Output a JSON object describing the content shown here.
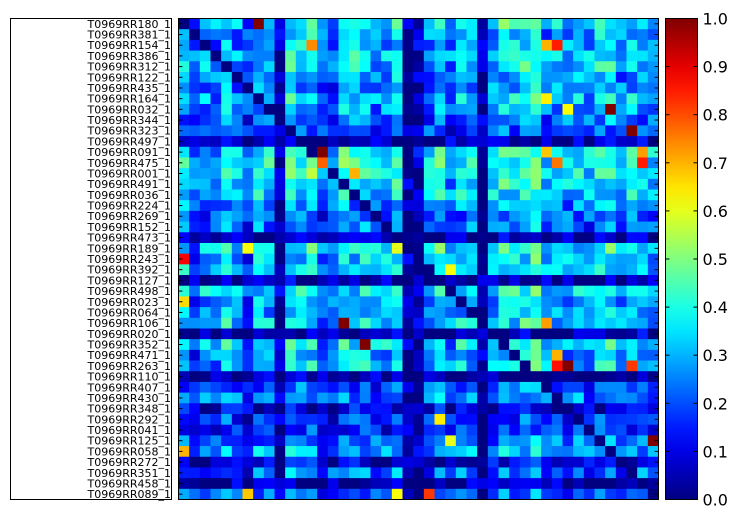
{
  "chart_data": {
    "type": "heatmap",
    "title": "",
    "xlabel": "",
    "ylabel": "",
    "colormap": "jet",
    "vmin": 0.0,
    "vmax": 1.0,
    "rows": [
      "T0969RR180_1",
      "T0969RR381_1",
      "T0969RR154_1",
      "T0969RR386_1",
      "T0969RR312_1",
      "T0969RR122_1",
      "T0969RR435_1",
      "T0969RR164_1",
      "T0969RR032_1",
      "T0969RR344_1",
      "T0969RR323_1",
      "T0969RR497_1",
      "T0969RR091_1",
      "T0969RR475_1",
      "T0969RR001_1",
      "T0969RR491_1",
      "T0969RR036_1",
      "T0969RR224_1",
      "T0969RR269_1",
      "T0969RR152_1",
      "T0969RR473_1",
      "T0969RR189_1",
      "T0969RR243_1",
      "T0969RR392_1",
      "T0969RR127_1",
      "T0969RR498_1",
      "T0969RR023_1",
      "T0969RR064_1",
      "T0969RR106_1",
      "T0969RR020_1",
      "T0969RR352_1",
      "T0969RR471_1",
      "T0969RR263_1",
      "T0969RR110_1",
      "T0969RR407_1",
      "T0969RR430_1",
      "T0969RR348_1",
      "T0969RR292_1",
      "T0969RR041_1",
      "T0969RR125_1",
      "T0969RR058_1",
      "T0969RR272_1",
      "T0969RR351_1",
      "T0969RR458_1",
      "T0969RR089_1"
    ],
    "colorbar": {
      "ticks": [
        "0.0",
        "0.1",
        "0.2",
        "0.3",
        "0.4",
        "0.5",
        "0.6",
        "0.7",
        "0.8",
        "0.9",
        "1.0"
      ],
      "tick_values": [
        0.0,
        0.1,
        0.2,
        0.3,
        0.4,
        0.5,
        0.6,
        0.7,
        0.8,
        0.9,
        1.0
      ]
    },
    "row_base": [
      0.4,
      0.32,
      0.32,
      0.38,
      0.36,
      0.3,
      0.28,
      0.36,
      0.3,
      0.26,
      0.22,
      0.05,
      0.4,
      0.42,
      0.42,
      0.38,
      0.36,
      0.28,
      0.24,
      0.26,
      0.05,
      0.4,
      0.34,
      0.36,
      0.05,
      0.38,
      0.32,
      0.3,
      0.36,
      0.05,
      0.38,
      0.32,
      0.36,
      0.04,
      0.22,
      0.28,
      0.1,
      0.2,
      0.16,
      0.26,
      0.3,
      0.1,
      0.26,
      0.04,
      0.24
    ],
    "col_base": [
      0.36,
      0.22,
      0.32,
      0.28,
      0.38,
      0.3,
      0.2,
      0.36,
      0.34,
      0.04,
      0.4,
      0.38,
      0.42,
      0.26,
      0.26,
      0.4,
      0.36,
      0.38,
      0.3,
      0.34,
      0.4,
      0.04,
      0.06,
      0.3,
      0.4,
      0.26,
      0.36,
      0.34,
      0.04,
      0.34,
      0.4,
      0.38,
      0.42,
      0.46,
      0.3,
      0.34,
      0.32,
      0.34,
      0.3,
      0.38,
      0.4,
      0.3,
      0.36,
      0.34,
      0.3
    ],
    "highlights": [
      {
        "r": 0,
        "c": 7,
        "v": 1.0
      },
      {
        "r": 8,
        "c": 40,
        "v": 1.0
      },
      {
        "r": 10,
        "c": 42,
        "v": 1.0
      },
      {
        "r": 12,
        "c": 13,
        "v": 1.0
      },
      {
        "r": 28,
        "c": 15,
        "v": 1.0
      },
      {
        "r": 30,
        "c": 17,
        "v": 1.0
      },
      {
        "r": 32,
        "c": 36,
        "v": 1.0
      },
      {
        "r": 39,
        "c": 44,
        "v": 1.0
      },
      {
        "r": 2,
        "c": 35,
        "v": 0.85
      },
      {
        "r": 2,
        "c": 34,
        "v": 0.7
      },
      {
        "r": 13,
        "c": 13,
        "v": 0.78
      },
      {
        "r": 13,
        "c": 43,
        "v": 0.85
      },
      {
        "r": 12,
        "c": 43,
        "v": 0.72
      },
      {
        "r": 14,
        "c": 16,
        "v": 0.7
      },
      {
        "r": 13,
        "c": 35,
        "v": 0.76
      },
      {
        "r": 22,
        "c": 0,
        "v": 0.88
      },
      {
        "r": 32,
        "c": 35,
        "v": 0.86
      },
      {
        "r": 44,
        "c": 23,
        "v": 0.82
      },
      {
        "r": 40,
        "c": 0,
        "v": 0.7
      },
      {
        "r": 44,
        "c": 6,
        "v": 0.68
      },
      {
        "r": 2,
        "c": 12,
        "v": 0.74
      },
      {
        "r": 28,
        "c": 34,
        "v": 0.72
      },
      {
        "r": 26,
        "c": 0,
        "v": 0.66
      },
      {
        "r": 32,
        "c": 42,
        "v": 0.82
      },
      {
        "r": 12,
        "c": 34,
        "v": 0.68
      },
      {
        "r": 31,
        "c": 35,
        "v": 0.7
      },
      {
        "r": 44,
        "c": 20,
        "v": 0.62
      },
      {
        "r": 37,
        "c": 24,
        "v": 0.64
      },
      {
        "r": 39,
        "c": 25,
        "v": 0.6
      },
      {
        "r": 23,
        "c": 25,
        "v": 0.62
      },
      {
        "r": 21,
        "c": 20,
        "v": 0.6
      },
      {
        "r": 21,
        "c": 6,
        "v": 0.62
      },
      {
        "r": 8,
        "c": 36,
        "v": 0.62
      },
      {
        "r": 7,
        "c": 34,
        "v": 0.64
      }
    ]
  }
}
